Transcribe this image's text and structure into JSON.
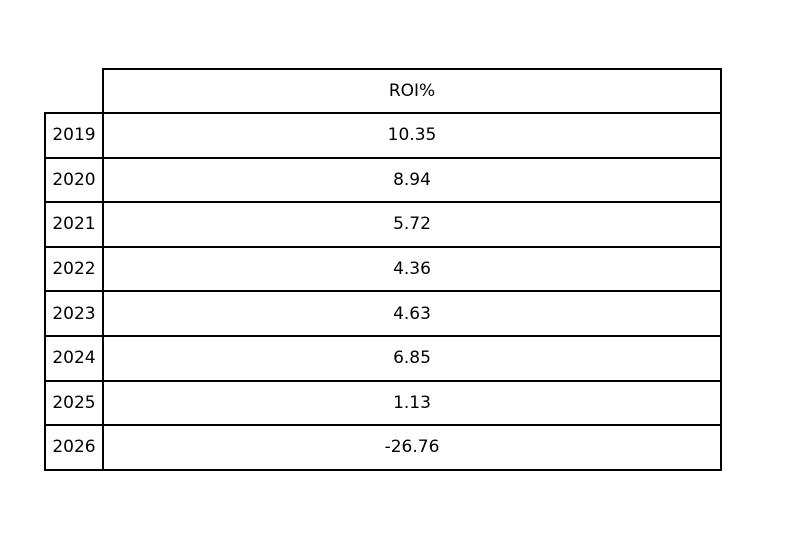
{
  "page": {
    "background_color": "#ffffff",
    "border_color": "#000000",
    "text_color": "#000000"
  },
  "table": {
    "column_header": "ROI%",
    "rows": [
      {
        "year": "2019",
        "value": "10.35"
      },
      {
        "year": "2020",
        "value": "8.94"
      },
      {
        "year": "2021",
        "value": "5.72"
      },
      {
        "year": "2022",
        "value": "4.36"
      },
      {
        "year": "2023",
        "value": "4.63"
      },
      {
        "year": "2024",
        "value": "6.85"
      },
      {
        "year": "2025",
        "value": "1.13"
      },
      {
        "year": "2026",
        "value": "-26.76"
      }
    ]
  },
  "chart_data": {
    "type": "table",
    "title": "",
    "columns": [
      "ROI%"
    ],
    "categories": [
      "2019",
      "2020",
      "2021",
      "2022",
      "2023",
      "2024",
      "2025",
      "2026"
    ],
    "series": [
      {
        "name": "ROI%",
        "values": [
          10.35,
          8.94,
          5.72,
          4.36,
          4.63,
          6.85,
          1.13,
          -26.76
        ]
      }
    ],
    "layout_hints": {
      "grid": "full-borders",
      "row_header_column": "years",
      "corner_cell": "empty",
      "value_alignment": "center"
    }
  }
}
